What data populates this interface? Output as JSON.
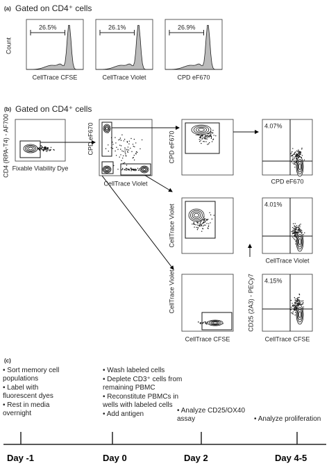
{
  "panel_a": {
    "label": "(a)",
    "title": "Gated on CD4⁺ cells",
    "y_axis_label": "Count",
    "plots": [
      {
        "percent": "26.5%",
        "x_label": "CellTrace CFSE"
      },
      {
        "percent": "26.1%",
        "x_label": "CellTrace Violet"
      },
      {
        "percent": "26.9%",
        "x_label": "CPD eF670"
      }
    ]
  },
  "panel_b": {
    "label": "(b)",
    "title": "Gated on CD4⁺ cells",
    "plots": [
      {
        "y_label": "CD4 (RPA-T4) - AF700",
        "x_label": "Fixable Viability Dye"
      },
      {
        "y_label": "CPD eF670",
        "x_label": "CellTrace Violet"
      },
      {
        "y_label": "CPD eF670"
      },
      {
        "y_label": "CellTrace Violet"
      },
      {
        "y_label": "CellTrace Violet",
        "x_label": "CellTrace CFSE"
      },
      {
        "percent": "4.07%",
        "x_label": "CPD eF670"
      },
      {
        "percent": "4.01%",
        "x_label": "CellTrace Violet"
      },
      {
        "percent": "4.15%",
        "y_label": "CD25 (2A3) - PECy7",
        "x_label": "CellTrace CFSE"
      }
    ]
  },
  "panel_c": {
    "label": "(c)",
    "events": [
      {
        "day": "Day -1",
        "steps": [
          "Sort memory cell populations",
          "Label with fluorescent dyes",
          "Rest in media overnight"
        ]
      },
      {
        "day": "Day 0",
        "steps": [
          "Wash labeled cells",
          "Deplete CD3⁺ cells from remaining PBMC",
          "Reconstitute PBMCs in wells with labeled cells",
          "Add antigen"
        ]
      },
      {
        "day": "Day 2",
        "steps": [
          "Analyze CD25/OX40 assay"
        ]
      },
      {
        "day": "Day 4-5",
        "steps": [
          "Analyze proliferation"
        ]
      }
    ]
  }
}
